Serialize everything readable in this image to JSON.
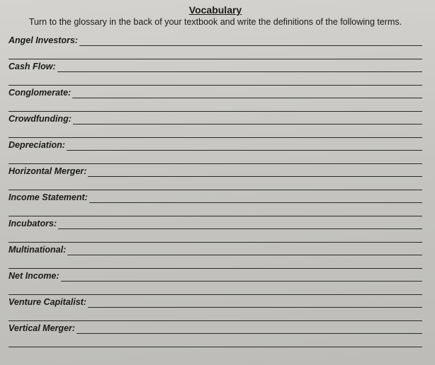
{
  "title": "Vocabulary",
  "instructions": "Turn to the glossary in the back of your textbook and write the definitions of the following terms.",
  "terms": [
    {
      "label": "Angel Investors:"
    },
    {
      "label": "Cash Flow:"
    },
    {
      "label": "Conglomerate:"
    },
    {
      "label": "Crowdfunding:"
    },
    {
      "label": "Depreciation:"
    },
    {
      "label": "Horizontal Merger:"
    },
    {
      "label": "Income Statement:"
    },
    {
      "label": "Incubators:"
    },
    {
      "label": "Multinational:"
    },
    {
      "label": "Net Income:"
    },
    {
      "label": "Venture Capitalist:"
    },
    {
      "label": "Vertical Merger:"
    }
  ],
  "colors": {
    "text": "#1a1a1a",
    "line": "#2a2a2a",
    "paper_light": "#d4d3cf",
    "paper_dark": "#bdbcb8"
  },
  "typography": {
    "title_fontsize": 14,
    "body_fontsize": 12.5,
    "font_family": "Arial"
  }
}
